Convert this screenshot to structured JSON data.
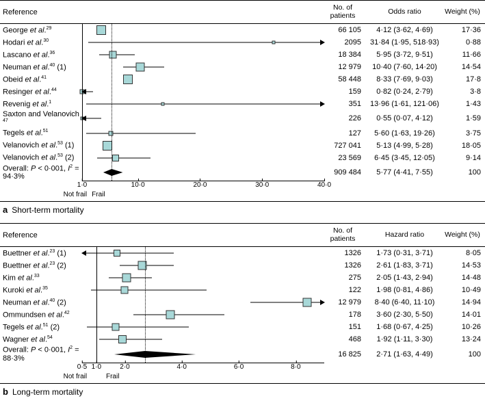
{
  "colors": {
    "marker_fill": "#a8d8d8",
    "marker_stroke": "#333333",
    "line": "#000000",
    "diamond": "#000000",
    "bg": "#ffffff"
  },
  "panelA": {
    "letter": "a",
    "title": "Short-term mortality",
    "columns": {
      "ref": "Reference",
      "n": "No. of\npatients",
      "effect": "Odds ratio",
      "wt": "Weight (%)"
    },
    "axis": {
      "min": 1.0,
      "max": 40.0,
      "ticks": [
        1.0,
        10.0,
        20.0,
        30.0,
        40.0
      ],
      "scale": "linear",
      "left_label": "Not frail",
      "right_label": "Frail",
      "null_line": 1.0,
      "pooled_line": 5.77
    },
    "rows": [
      {
        "ref_html": "George <span class='italic'>et al</span>.<sup>29</sup>",
        "n": "66 105",
        "eff": "4·12 (3·62, 4·69)",
        "wt": "17·36",
        "point": 4.12,
        "lo": 3.62,
        "hi": 4.69,
        "size": 14
      },
      {
        "ref_html": "Hodari <span class='italic'>et al</span>.<sup>30</sup>",
        "n": "2095",
        "eff": "31·84 (1·95, 518·93)",
        "wt": "0·88",
        "point": 31.84,
        "lo": 1.95,
        "hi": 518.93,
        "size": 5,
        "arrow_r": true
      },
      {
        "ref_html": "Lascano <span class='italic'>et al</span>.<sup>36</sup>",
        "n": "18 384",
        "eff": "5·95 (3·72, 9·51)",
        "wt": "11·66",
        "point": 5.95,
        "lo": 3.72,
        "hi": 9.51,
        "size": 11
      },
      {
        "ref_html": "Neuman <span class='italic'>et al</span>.<sup>40</sup> (1)",
        "n": "12 979",
        "eff": "10·40 (7·60, 14·20)",
        "wt": "14·54",
        "point": 10.4,
        "lo": 7.6,
        "hi": 14.2,
        "size": 13
      },
      {
        "ref_html": "Obeid <span class='italic'>et al</span>.<sup>41</sup>",
        "n": "58 448",
        "eff": "8·33 (7·69, 9·03)",
        "wt": "17·8",
        "point": 8.33,
        "lo": 7.69,
        "hi": 9.03,
        "size": 14
      },
      {
        "ref_html": "Resinger <span class='italic'>et al</span>.<sup>44</sup>",
        "n": "159",
        "eff": "0·82 (0·24, 2·79)",
        "wt": "3·8",
        "point": 0.82,
        "lo": 0.24,
        "hi": 2.79,
        "size": 7,
        "arrow_l": true
      },
      {
        "ref_html": "Revenig <span class='italic'>et al</span>.<sup>1</sup>",
        "n": "351",
        "eff": "13·96 (1·61, 121·06)",
        "wt": "1·43",
        "point": 13.96,
        "lo": 1.61,
        "hi": 121.06,
        "size": 5,
        "arrow_r": true
      },
      {
        "ref_html": "Saxton and Velanovich <sup>47</sup>",
        "n": "226",
        "eff": "0·55 (0·07, 4·12)",
        "wt": "1·59",
        "point": 0.55,
        "lo": 0.07,
        "hi": 4.12,
        "size": 5,
        "arrow_l": true
      },
      {
        "ref_html": "Tegels <span class='italic'>et al</span>.<sup>51</sup>",
        "n": "127",
        "eff": "5·60 (1·63, 19·26)",
        "wt": "3·75",
        "point": 5.6,
        "lo": 1.63,
        "hi": 19.26,
        "size": 7
      },
      {
        "ref_html": "Velanovich <span class='italic'>et al</span>.<sup>53</sup> (1)",
        "n": "727 041",
        "eff": "5·13 (4·99, 5·28)",
        "wt": "18·05",
        "point": 5.13,
        "lo": 4.99,
        "hi": 5.28,
        "size": 14
      },
      {
        "ref_html": "Velanovich <span class='italic'>et al</span>.<sup>53</sup> (2)",
        "n": "23 569",
        "eff": "6·45 (3·45, 12·05)",
        "wt": "9·14",
        "point": 6.45,
        "lo": 3.45,
        "hi": 12.05,
        "size": 10
      }
    ],
    "overall": {
      "label_html": "Overall: <span class='italic'>P</span> &lt; 0·001, <span class='italic'>I</span><sup>2</sup> = 94·3%",
      "n": "909 484",
      "eff": "5·77 (4·41, 7·55)",
      "wt": "100",
      "point": 5.77,
      "lo": 4.41,
      "hi": 7.55
    }
  },
  "panelB": {
    "letter": "b",
    "title": "Long-term mortality",
    "columns": {
      "ref": "Reference",
      "n": "No. of\npatients",
      "effect": "Hazard ratio",
      "wt": "Weight (%)"
    },
    "axis": {
      "min": 0.5,
      "max": 9.0,
      "ticks": [
        0.5,
        1.0,
        2.0,
        4.0,
        6.0,
        8.0
      ],
      "scale": "linear",
      "left_label": "Not frail",
      "right_label": "Frail",
      "null_line": 1.0,
      "pooled_line": 2.71
    },
    "rows": [
      {
        "ref_html": "Buettner <span class='italic'>et al</span>.<sup>23</sup> (1)",
        "n": "1326",
        "eff": "1·73 (0·31, 3·71)",
        "wt": "8·05",
        "point": 1.73,
        "lo": 0.31,
        "hi": 3.71,
        "size": 10,
        "arrow_l": true
      },
      {
        "ref_html": "Buettner <span class='italic'>et al</span>.<sup>23</sup> (2)",
        "n": "1326",
        "eff": "2·61 (1·83, 3·71)",
        "wt": "14·53",
        "point": 2.61,
        "lo": 1.83,
        "hi": 3.71,
        "size": 13
      },
      {
        "ref_html": "Kim <span class='italic'>et al</span>.<sup>33</sup>",
        "n": "275",
        "eff": "2·05 (1·43, 2·94)",
        "wt": "14·48",
        "point": 2.05,
        "lo": 1.43,
        "hi": 2.94,
        "size": 13
      },
      {
        "ref_html": "Kuroki <span class='italic'>et al</span>.<sup>35</sup>",
        "n": "122",
        "eff": "1·98 (0·81, 4·86)",
        "wt": "10·49",
        "point": 1.98,
        "lo": 0.81,
        "hi": 4.86,
        "size": 11
      },
      {
        "ref_html": "Neuman <span class='italic'>et al</span>.<sup>40</sup> (2)",
        "n": "12 979",
        "eff": "8·40 (6·40, 11·10)",
        "wt": "14·94",
        "point": 8.4,
        "lo": 6.4,
        "hi": 11.1,
        "size": 13,
        "arrow_r": true
      },
      {
        "ref_html": "Ommundsen <span class='italic'>et al</span>.<sup>42</sup>",
        "n": "178",
        "eff": "3·60 (2·30, 5·50)",
        "wt": "14·01",
        "point": 3.6,
        "lo": 2.3,
        "hi": 5.5,
        "size": 13
      },
      {
        "ref_html": "Tegels <span class='italic'>et al</span>.<sup>51</sup> (2)",
        "n": "151",
        "eff": "1·68 (0·67, 4·25)",
        "wt": "10·26",
        "point": 1.68,
        "lo": 0.67,
        "hi": 4.25,
        "size": 11
      },
      {
        "ref_html": "Wagner <span class='italic'>et al</span>.<sup>54</sup>",
        "n": "468",
        "eff": "1·92 (1·11, 3·30)",
        "wt": "13·24",
        "point": 1.92,
        "lo": 1.11,
        "hi": 3.3,
        "size": 12
      }
    ],
    "overall": {
      "label_html": "Overall: <span class='italic'>P</span> &lt; 0·001, <span class='italic'>I</span><sup>2</sup> = 88·3%",
      "n": "16 825",
      "eff": "2·71 (1·63, 4·49)",
      "wt": "100",
      "point": 2.71,
      "lo": 1.63,
      "hi": 4.49
    }
  }
}
